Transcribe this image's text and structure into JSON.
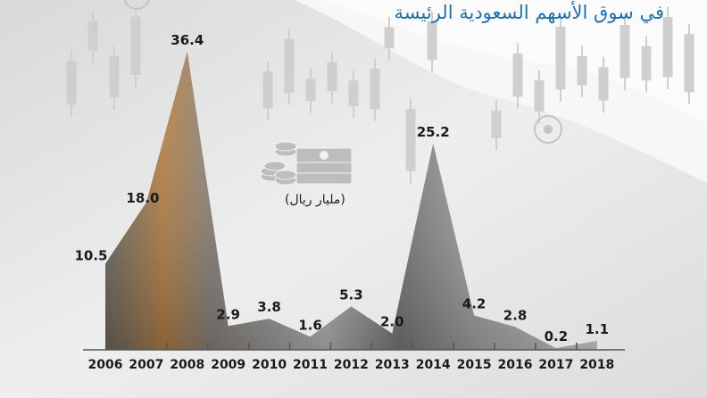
{
  "header": {
    "title": "في سوق الأسهم السعودية الرئيسة",
    "unit": "(مليار ريال)"
  },
  "colors": {
    "title": "#1f6fa8",
    "area": "#8a8a8a",
    "area_accent": "#b7844a",
    "axis": "#555555",
    "text": "#1a1a1a",
    "background": "#ececec"
  },
  "icons": {
    "money": "money-stack-icon",
    "target": "target-circle-icon"
  },
  "chart_data": {
    "type": "area",
    "title": "في سوق الأسهم السعودية الرئيسة",
    "unit": "(مليار ريال)",
    "categories": [
      "2006",
      "2007",
      "2008",
      "2009",
      "2010",
      "2011",
      "2012",
      "2013",
      "2014",
      "2015",
      "2016",
      "2017",
      "2018"
    ],
    "series": [
      {
        "values": [
          10.5,
          18.0,
          36.4,
          2.9,
          3.8,
          1.6,
          5.3,
          2.0,
          25.2,
          4.2,
          2.8,
          0.2,
          1.1
        ],
        "labels": [
          "10.5",
          "18.0",
          "36.4",
          "2.9",
          "3.8",
          "1.6",
          "5.3",
          "2.0",
          "25.2",
          "4.2",
          "2.8",
          "0.2",
          "1.1"
        ]
      }
    ],
    "ylim": [
      0,
      36.4
    ],
    "grid": false
  }
}
